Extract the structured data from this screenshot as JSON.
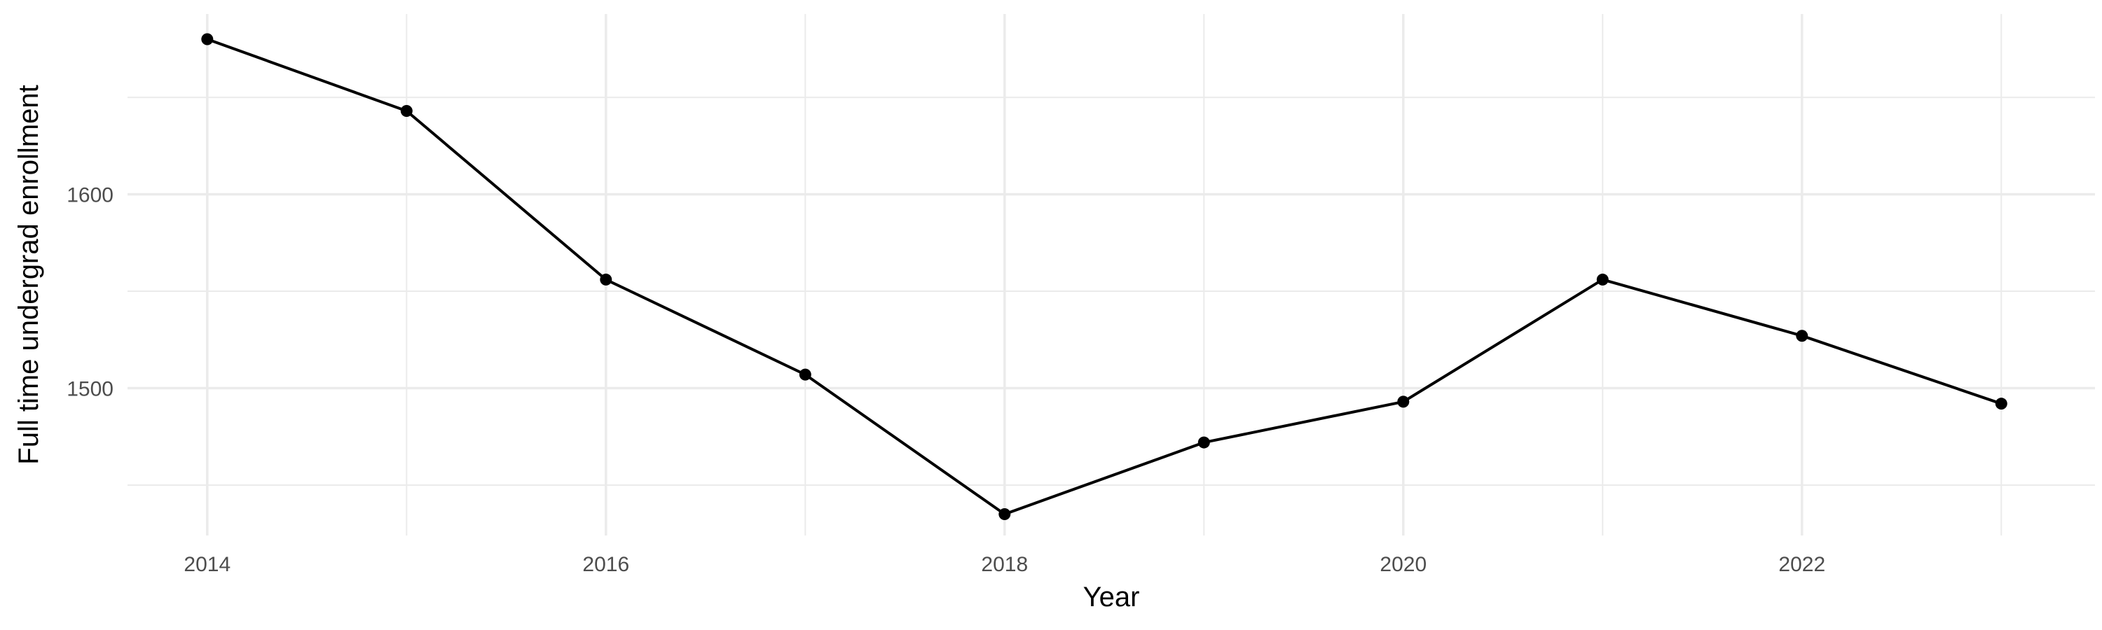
{
  "chart_data": {
    "type": "line",
    "title": "",
    "xlabel": "Year",
    "ylabel": "Full time undergrad enrollment",
    "x": [
      2014,
      2015,
      2016,
      2017,
      2018,
      2019,
      2020,
      2021,
      2022,
      2023
    ],
    "series": [
      {
        "values": [
          1680,
          1643,
          1556,
          1507,
          1435,
          1472,
          1493,
          1556,
          1527,
          1492
        ]
      }
    ],
    "xlim": [
      2013.6,
      2023.47
    ],
    "ylim": [
      1424,
      1693
    ],
    "x_ticks": [
      2014,
      2016,
      2018,
      2020,
      2022
    ],
    "x_tick_labels": [
      "2014",
      "2016",
      "2018",
      "2020",
      "2022"
    ],
    "x_minor_ticks": [
      2015,
      2017,
      2019,
      2021,
      2023
    ],
    "y_ticks": [
      1500,
      1600
    ],
    "y_tick_labels": [
      "1500",
      "1600"
    ],
    "y_minor_ticks": [
      1450,
      1550,
      1650
    ],
    "grid": true,
    "legend": "none",
    "colors": {
      "line": "#000000",
      "point": "#000000",
      "grid": "#ebebeb",
      "tick_text": "#4d4d4d",
      "axis_title": "#000000",
      "background": "#ffffff"
    }
  }
}
